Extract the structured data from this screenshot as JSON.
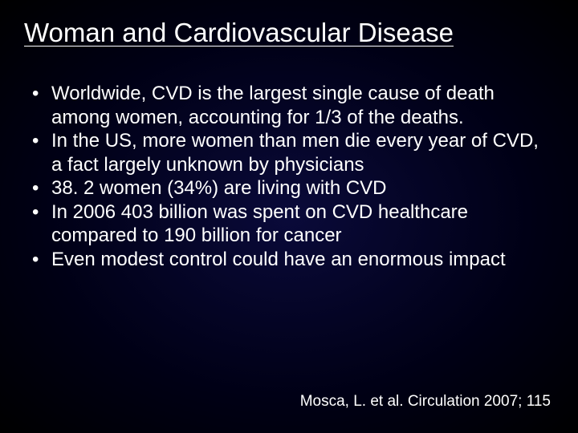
{
  "slide": {
    "title": "Woman and Cardiovascular Disease",
    "bullets": [
      "Worldwide, CVD is the largest single cause of death among women, accounting for 1/3 of the deaths.",
      "In the US, more women than men die every year of CVD, a fact largely unknown by physicians",
      "38. 2 women (34%) are living with CVD",
      "In 2006 403 billion was spent on CVD healthcare compared to 190 billion for cancer",
      "Even modest control could have an enormous impact"
    ],
    "citation": "Mosca, L. et al. Circulation 2007; 115"
  },
  "style": {
    "background_gradient_center": "#0a0a3a",
    "background_gradient_edge": "#000000",
    "text_color": "#ffffff",
    "title_fontsize": 33,
    "body_fontsize": 24,
    "citation_fontsize": 19
  }
}
